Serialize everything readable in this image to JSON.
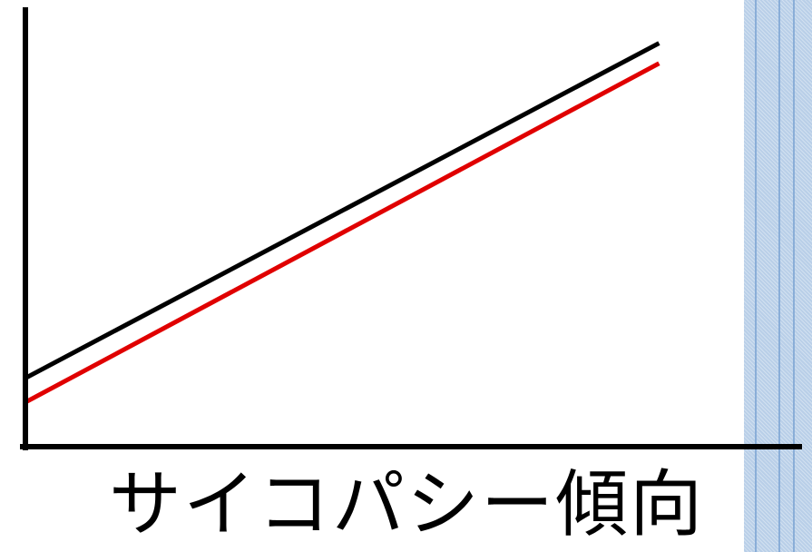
{
  "chart_data": {
    "type": "line",
    "title": "",
    "xlabel": "サイコパシー傾向",
    "ylabel": "",
    "grid": false,
    "legend": "none",
    "series": [
      {
        "color": "#000000",
        "x": [
          0,
          1
        ],
        "y": [
          0.17,
          1.0
        ]
      },
      {
        "color": "#e00000",
        "x": [
          0,
          1
        ],
        "y": [
          0.11,
          0.95
        ]
      }
    ],
    "xlim": [
      0,
      1.22
    ],
    "ylim": [
      0,
      1.08
    ]
  },
  "decor": {
    "stripe_color": "#b9cfe8",
    "stripe_line_color": "#8aaed8"
  }
}
